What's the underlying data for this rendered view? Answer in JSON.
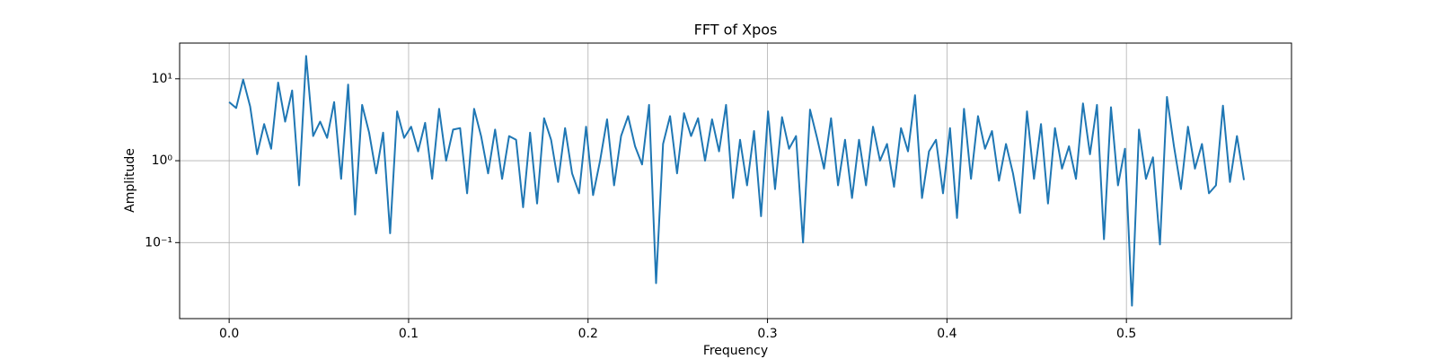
{
  "chart_data": {
    "type": "line",
    "title": "FFT of Xpos",
    "x_label": "Frequency",
    "y_label": "Amplitude",
    "x": [
      0,
      0.0039,
      0.0078,
      0.0117,
      0.0156,
      0.0195,
      0.0234,
      0.0273,
      0.0312,
      0.0351,
      0.039,
      0.0429,
      0.0468,
      0.0507,
      0.0546,
      0.0585,
      0.0624,
      0.0663,
      0.0702,
      0.0741,
      0.078,
      0.0819,
      0.0858,
      0.0897,
      0.0936,
      0.0975,
      0.1014,
      0.1053,
      0.1092,
      0.1131,
      0.117,
      0.1209,
      0.1248,
      0.1287,
      0.1326,
      0.1365,
      0.1404,
      0.1443,
      0.1482,
      0.1521,
      0.156,
      0.1599,
      0.1638,
      0.1677,
      0.1716,
      0.1755,
      0.1794,
      0.1833,
      0.1872,
      0.1911,
      0.195,
      0.1989,
      0.2028,
      0.2067,
      0.2106,
      0.2145,
      0.2184,
      0.2223,
      0.2262,
      0.2301,
      0.234,
      0.2379,
      0.2418,
      0.2457,
      0.2496,
      0.2535,
      0.2574,
      0.2613,
      0.2652,
      0.2691,
      0.273,
      0.2769,
      0.2808,
      0.2847,
      0.2886,
      0.2925,
      0.2964,
      0.3003,
      0.3042,
      0.3081,
      0.312,
      0.3159,
      0.3198,
      0.3237,
      0.3276,
      0.3315,
      0.3354,
      0.3393,
      0.3432,
      0.3471,
      0.351,
      0.3549,
      0.3588,
      0.3627,
      0.3666,
      0.3705,
      0.3744,
      0.3783,
      0.3822,
      0.3861,
      0.39,
      0.3939,
      0.3978,
      0.4017,
      0.4056,
      0.4095,
      0.4134,
      0.4173,
      0.4212,
      0.4251,
      0.429,
      0.4329,
      0.4368,
      0.4407,
      0.4446,
      0.4485,
      0.4524,
      0.4563,
      0.4602,
      0.4641,
      0.468,
      0.4719,
      0.4758,
      0.4797,
      0.4836,
      0.4875,
      0.4914,
      0.4953,
      0.4992,
      0.5031,
      0.507,
      0.5109,
      0.5148,
      0.5187,
      0.5226,
      0.5265,
      0.5304,
      0.5343,
      0.5382,
      0.5421,
      0.546,
      0.5499,
      0.5538,
      0.5577,
      0.5616,
      0.5655
    ],
    "series": [
      {
        "color": "#1f77b4",
        "values": [
          5.2,
          4.4,
          9.8,
          4.6,
          1.2,
          2.8,
          1.4,
          9.0,
          3.0,
          7.2,
          0.5,
          19.0,
          2.0,
          3.0,
          1.9,
          5.2,
          0.6,
          8.5,
          0.22,
          4.8,
          2.2,
          0.7,
          2.2,
          0.13,
          4.0,
          1.9,
          2.6,
          1.3,
          2.9,
          0.6,
          4.3,
          1.0,
          2.4,
          2.5,
          0.4,
          4.3,
          2.0,
          0.7,
          2.4,
          0.6,
          2.0,
          1.8,
          0.27,
          2.2,
          0.3,
          3.3,
          1.8,
          0.55,
          2.5,
          0.7,
          0.4,
          2.6,
          0.38,
          1.0,
          3.2,
          0.5,
          2.0,
          3.5,
          1.5,
          0.9,
          4.8,
          0.032,
          1.6,
          3.5,
          0.7,
          3.8,
          2.0,
          3.3,
          1.0,
          3.2,
          1.3,
          4.8,
          0.35,
          1.8,
          0.5,
          2.3,
          0.21,
          4.0,
          0.45,
          3.4,
          1.4,
          2.0,
          0.1,
          4.2,
          1.9,
          0.8,
          3.3,
          0.5,
          1.8,
          0.35,
          1.8,
          0.5,
          2.6,
          1.0,
          1.6,
          0.48,
          2.5,
          1.3,
          6.3,
          0.35,
          1.3,
          1.8,
          0.4,
          2.5,
          0.2,
          4.3,
          0.6,
          3.5,
          1.4,
          2.3,
          0.57,
          1.6,
          0.7,
          0.23,
          4.0,
          0.6,
          2.8,
          0.3,
          2.5,
          0.8,
          1.5,
          0.6,
          5.0,
          1.2,
          4.8,
          0.11,
          4.5,
          0.5,
          1.4,
          0.017,
          2.4,
          0.6,
          1.1,
          0.095,
          6.0,
          1.5,
          0.45,
          2.6,
          0.8,
          1.6,
          0.4,
          0.5,
          4.7,
          0.55,
          2.0,
          0.58
        ]
      }
    ],
    "xlim": [
      -0.0276,
      0.592
    ],
    "xticks": [
      {
        "value": 0,
        "label": "0.0"
      },
      0.1,
      0.2,
      0.3,
      0.4,
      0.5
    ],
    "ylim": [
      0.0118,
      27.3
    ],
    "yscale": "log",
    "yticks": [
      {
        "value": 0.1,
        "label": "10⁻¹"
      },
      {
        "value": 1,
        "label": "10⁰"
      },
      {
        "value": 10,
        "label": "10¹"
      }
    ],
    "grid": true
  }
}
